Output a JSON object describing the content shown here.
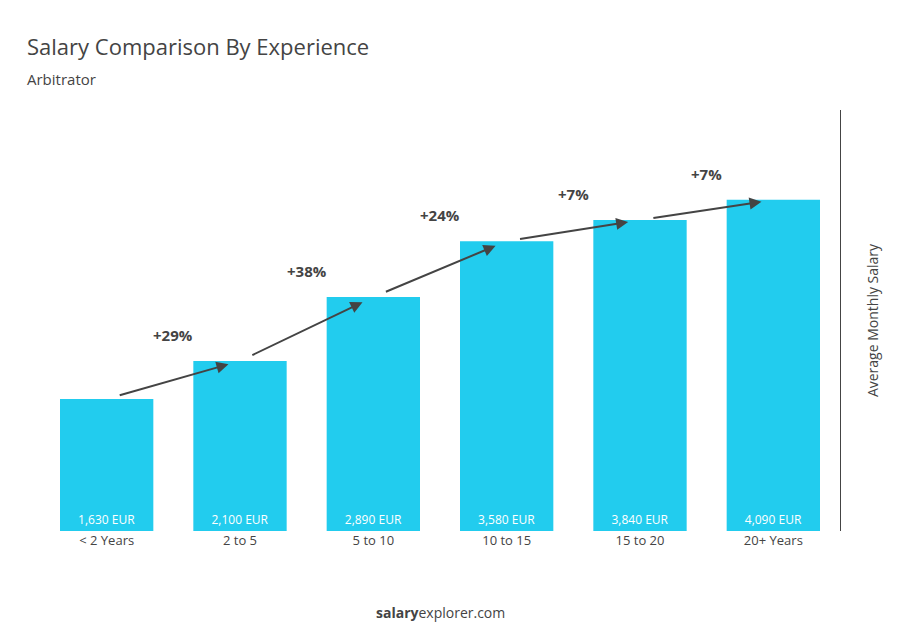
{
  "chart_data": {
    "type": "bar",
    "title": "Salary Comparison By Experience",
    "subtitle": "Arbitrator",
    "ylabel": "Average Monthly Salary",
    "categories": [
      "< 2 Years",
      "2 to 5",
      "5 to 10",
      "10 to 15",
      "15 to 20",
      "20+ Years"
    ],
    "values": [
      1630,
      2100,
      2890,
      3580,
      3840,
      4090
    ],
    "value_labels": [
      "1,630 EUR",
      "2,100 EUR",
      "2,890 EUR",
      "3,580 EUR",
      "3,840 EUR",
      "4,090 EUR"
    ],
    "data_labels": true,
    "annotations": [
      "+29%",
      "+38%",
      "+24%",
      "+7%",
      "+7%"
    ],
    "footer": [
      "salary",
      "explorer.com"
    ],
    "color": "#22ccee",
    "ylim": [
      0,
      5200
    ],
    "yticks": [],
    "tick_labels": "x",
    "grid": false
  }
}
